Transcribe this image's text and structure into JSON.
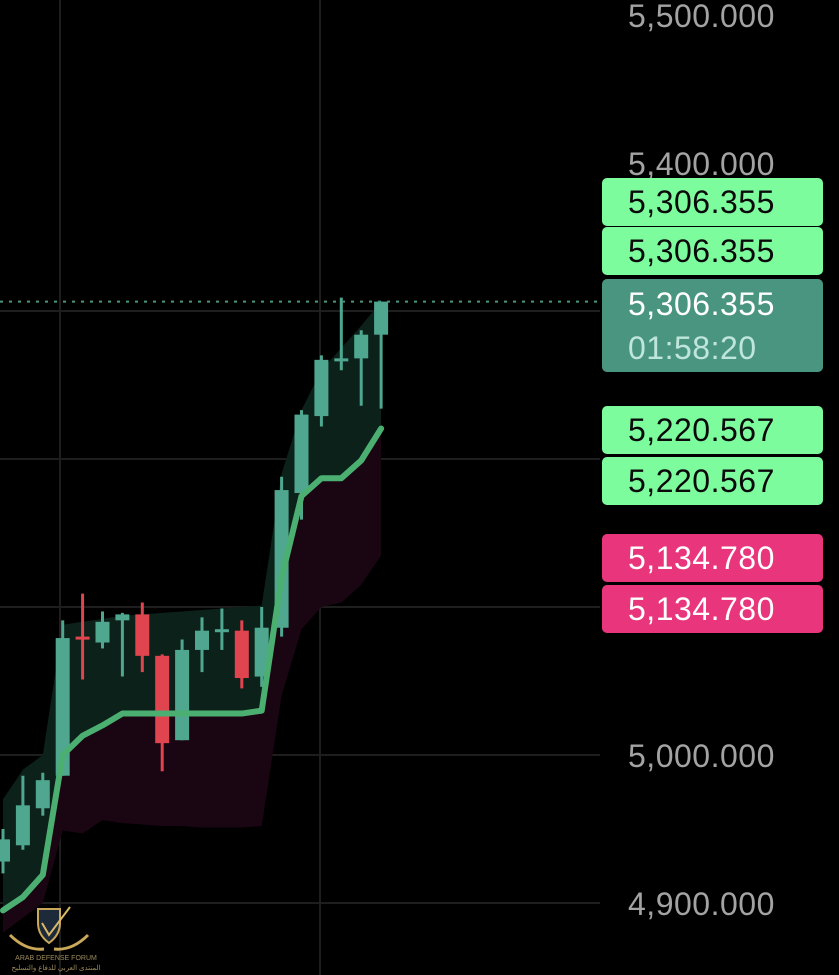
{
  "chart_data": {
    "type": "candlestick",
    "title": "",
    "xlabel": "",
    "ylabel": "",
    "ylim": [
      4880,
      5510
    ],
    "grid": true,
    "y_ticks": [
      {
        "value": 5500,
        "label": "5,500.000"
      },
      {
        "value": 5400,
        "label": "5,400.000"
      },
      {
        "value": 5000,
        "label": "5,000.000"
      },
      {
        "value": 4900,
        "label": "4,900.000"
      }
    ],
    "grid_values": [
      5300,
      5200,
      5100,
      5000,
      4900
    ],
    "candles": [
      {
        "o": 4928,
        "h": 4950,
        "l": 4920,
        "c": 4943
      },
      {
        "o": 4939,
        "h": 4986,
        "l": 4936,
        "c": 4966
      },
      {
        "o": 4964,
        "h": 4988,
        "l": 4959,
        "c": 4983
      },
      {
        "o": 4986,
        "h": 5091,
        "l": 4986,
        "c": 5079
      },
      {
        "o": 5080,
        "h": 5109,
        "l": 5051,
        "c": 5078
      },
      {
        "o": 5076,
        "h": 5097,
        "l": 5072,
        "c": 5090
      },
      {
        "o": 5091,
        "h": 5096,
        "l": 5053,
        "c": 5095
      },
      {
        "o": 5095,
        "h": 5103,
        "l": 5056,
        "c": 5067
      },
      {
        "o": 5067,
        "h": 5068,
        "l": 4989,
        "c": 5008
      },
      {
        "o": 5010,
        "h": 5078,
        "l": 5010,
        "c": 5071
      },
      {
        "o": 5071,
        "h": 5093,
        "l": 5056,
        "c": 5084
      },
      {
        "o": 5084,
        "h": 5099,
        "l": 5071,
        "c": 5085
      },
      {
        "o": 5084,
        "h": 5091,
        "l": 5045,
        "c": 5052
      },
      {
        "o": 5053,
        "h": 5100,
        "l": 5046,
        "c": 5086
      },
      {
        "o": 5086,
        "h": 5188,
        "l": 5080,
        "c": 5179
      },
      {
        "o": 5177,
        "h": 5233,
        "l": 5159,
        "c": 5230
      },
      {
        "o": 5229,
        "h": 5270,
        "l": 5222,
        "c": 5267
      },
      {
        "o": 5267,
        "h": 5309,
        "l": 5260,
        "c": 5268
      },
      {
        "o": 5268,
        "h": 5287,
        "l": 5236,
        "c": 5284
      },
      {
        "o": 5284,
        "h": 5306.355,
        "l": 5234,
        "c": 5306.355
      }
    ],
    "trend_line": [
      4895,
      4904,
      4919,
      5000,
      5013,
      5020,
      5028,
      5028,
      5028,
      5028,
      5028,
      5028,
      5028,
      5030,
      5120,
      5175,
      5187,
      5187,
      5199,
      5220.567
    ],
    "upper_band": [
      4970,
      4990,
      5000,
      5088,
      5090,
      5092,
      5094,
      5095,
      5096,
      5097,
      5098,
      5099,
      5100,
      5101,
      5190,
      5233,
      5260,
      5275,
      5290,
      5306.355
    ],
    "lower_band": [
      4880,
      4890,
      4900,
      4949,
      4947,
      4956,
      4954,
      4953,
      4952,
      4952,
      4951,
      4951,
      4951,
      4952,
      5040,
      5085,
      5100,
      5103,
      5115,
      5134.78
    ],
    "colors": {
      "up": "#4fa790",
      "down": "#e0454f",
      "trend_line": "#4caf72",
      "upper_fill": "#0c2119",
      "lower_fill": "#1a0612",
      "grid": "#1e1e1e",
      "last_price_line": "#4a9580"
    },
    "last_price": 5306.355,
    "price_tags": [
      {
        "label": "5,306.355",
        "style": "green",
        "color": "#7dfc9e"
      },
      {
        "label": "5,306.355",
        "style": "green",
        "color": "#7dfc9e"
      },
      {
        "label": "5,306.355",
        "countdown": "01:58:20",
        "style": "teal",
        "color": "#4a9580"
      },
      {
        "label": "5,220.567",
        "style": "green",
        "color": "#7dfc9e"
      },
      {
        "label": "5,220.567",
        "style": "green",
        "color": "#7dfc9e"
      },
      {
        "label": "5,134.780",
        "style": "pink",
        "color": "#e8357b"
      },
      {
        "label": "5,134.780",
        "style": "pink",
        "color": "#e8357b"
      }
    ]
  },
  "watermark": {
    "en": "ARAB DEFENSE FORUM",
    "ar": "المنتدى العربي للدفاع والتسليح"
  }
}
